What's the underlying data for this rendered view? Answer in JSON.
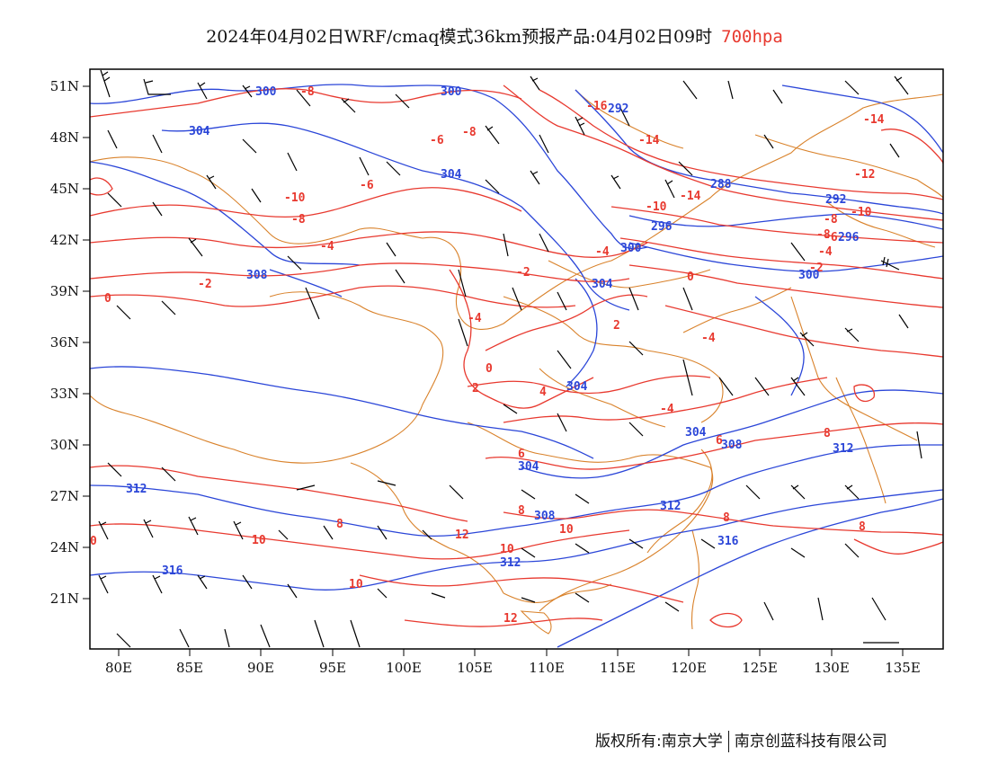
{
  "title": {
    "main": "2024年04月02日WRF/cmaq模式36km预报产品:04月02日09时",
    "level": "700hpa"
  },
  "axes": {
    "lat_labels": [
      "51N",
      "48N",
      "45N",
      "42N",
      "39N",
      "36N",
      "33N",
      "30N",
      "27N",
      "24N",
      "21N"
    ],
    "lon_labels": [
      "80E",
      "85E",
      "90E",
      "95E",
      "100E",
      "105E",
      "110E",
      "115E",
      "120E",
      "125E",
      "130E",
      "135E"
    ]
  },
  "contour_labels": {
    "red": [
      {
        "t": "-8"
      },
      {
        "t": "-6"
      },
      {
        "t": "-8"
      },
      {
        "t": "-16"
      },
      {
        "t": "-14"
      },
      {
        "t": "-14"
      },
      {
        "t": "-6"
      },
      {
        "t": "-10"
      },
      {
        "t": "-8"
      },
      {
        "t": "-4"
      },
      {
        "t": "-2"
      },
      {
        "t": "0"
      },
      {
        "t": "-2"
      },
      {
        "t": "-4"
      },
      {
        "t": "-10"
      },
      {
        "t": "-14"
      },
      {
        "t": "-12"
      },
      {
        "t": "-10"
      },
      {
        "t": "-8"
      },
      {
        "t": "-6"
      },
      {
        "t": "-4"
      },
      {
        "t": "-2"
      },
      {
        "t": "-4"
      },
      {
        "t": "0"
      },
      {
        "t": "2"
      },
      {
        "t": "-4"
      },
      {
        "t": "0"
      },
      {
        "t": "2"
      },
      {
        "t": "4"
      },
      {
        "t": "-4"
      },
      {
        "t": "6"
      },
      {
        "t": "8"
      },
      {
        "t": "6"
      },
      {
        "t": "8"
      },
      {
        "t": "10"
      },
      {
        "t": "12"
      },
      {
        "t": "10"
      },
      {
        "t": "8"
      },
      {
        "t": "10"
      },
      {
        "t": "10"
      },
      {
        "t": "8"
      },
      {
        "t": "12"
      },
      {
        "t": "8"
      },
      {
        "t": "0"
      },
      {
        "t": "-8"
      }
    ],
    "blue": [
      {
        "t": "300"
      },
      {
        "t": "300"
      },
      {
        "t": "304"
      },
      {
        "t": "292"
      },
      {
        "t": "304"
      },
      {
        "t": "288"
      },
      {
        "t": "292"
      },
      {
        "t": "296"
      },
      {
        "t": "300"
      },
      {
        "t": "296"
      },
      {
        "t": "308"
      },
      {
        "t": "300"
      },
      {
        "t": "304"
      },
      {
        "t": "304"
      },
      {
        "t": "304"
      },
      {
        "t": "308"
      },
      {
        "t": "312"
      },
      {
        "t": "304"
      },
      {
        "t": "308"
      },
      {
        "t": "312"
      },
      {
        "t": "312"
      },
      {
        "t": "312"
      },
      {
        "t": "316"
      },
      {
        "t": "316"
      }
    ]
  },
  "footer": {
    "copyright": "版权所有:南京大学",
    "company": "南京创蓝科技有限公司"
  },
  "colors": {
    "temperature_contour": "#e8392f",
    "height_contour": "#2b46d8",
    "border": "#d9822b",
    "wind_barb": "#000000"
  }
}
